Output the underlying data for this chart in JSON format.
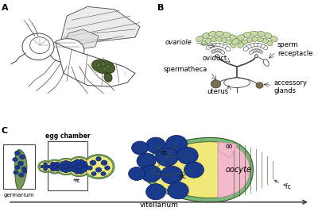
{
  "panel_A_label": "A",
  "panel_B_label": "B",
  "panel_C_label": "C",
  "bg_color": "#ffffff",
  "panel_label_fontsize": 8,
  "label_fontsize": 6,
  "gray": "#444444",
  "dark_green": "#3a5a2a",
  "blue_fill": "#1a3a8c",
  "blue_dark": "#0a1a60",
  "yellow_fill": "#f0e878",
  "pink_fill": "#f4b8cc",
  "green_layer": "#7ab87a",
  "green_stripe": "#5a9a5a",
  "green_light": "#c8d8a8",
  "green_dark": "#5a7a3a",
  "olive": "#6a7c3a",
  "vitellarium_text": "vitellarium",
  "germarium_text": "germarium",
  "egg_chamber_text": "egg chamber",
  "oocyte_text": "oocyte",
  "oo_text": "oo",
  "nc_text": "nc",
  "fc_text": "fc",
  "ovariole_text": "ovariole",
  "oviduct_text": "oviduct",
  "spermatheca_text": "spermatheca",
  "uterus_text": "uterus",
  "sperm_receptacle_text": "sperm\nreceptacle",
  "accessory_glands_text": "accessory\nglands"
}
